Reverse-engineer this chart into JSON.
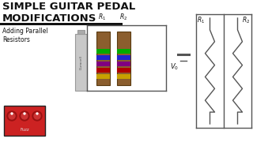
{
  "background_color": "#ffffff",
  "title_line1": "SIMPLE GUITAR PEDAL",
  "title_line2": "MODIFICATIONS",
  "subtitle_line1": "Adding Parallel",
  "subtitle_line2": "Resistors",
  "title_fontsize": 9.5,
  "subtitle_fontsize": 5.5,
  "text_color": "#111111",
  "circuit_line_color": "#555555",
  "resistor_body_color": "#8B5E2E",
  "r1_label": "R_1",
  "r2_label": "R_2",
  "v0_label": "V_0",
  "band_colors": [
    "#c8a000",
    "#b00000",
    "#800080",
    "#2222cc",
    "#00aa00"
  ],
  "pedal_color": "#cc2222",
  "knob_color": "#aa1111"
}
